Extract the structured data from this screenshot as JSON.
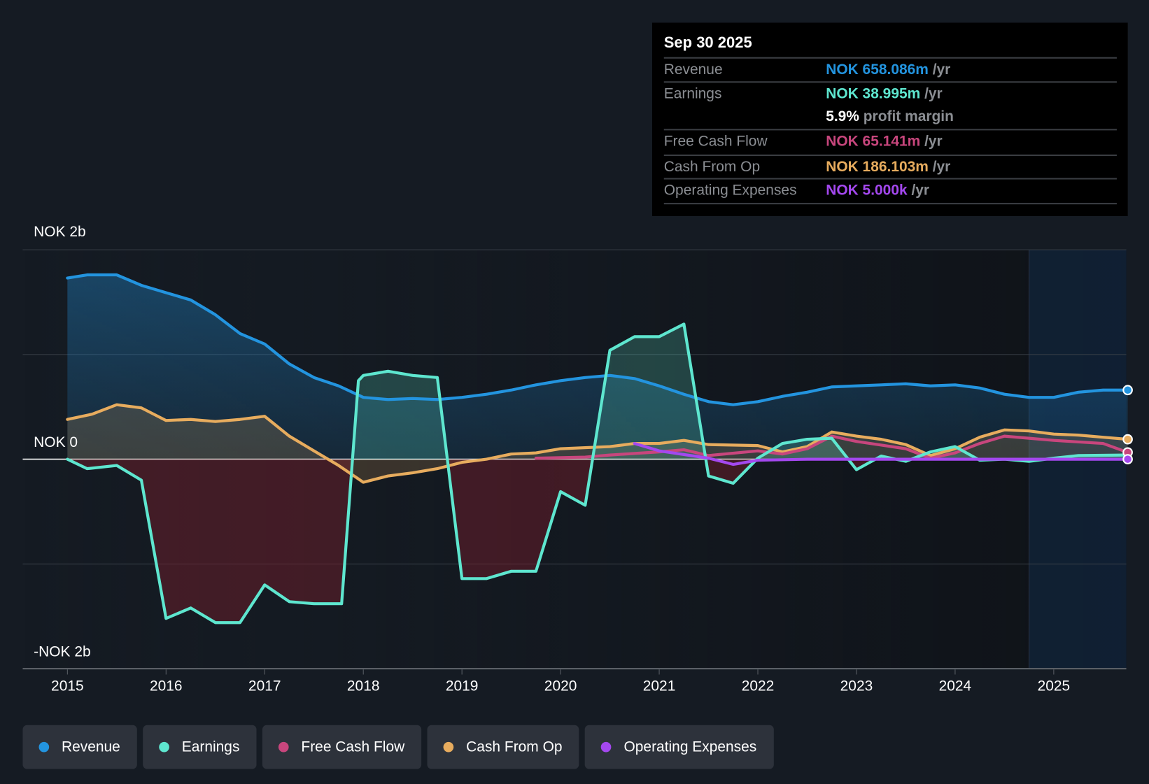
{
  "tooltip": {
    "date": "Sep 30 2025",
    "rows": [
      {
        "label": "Revenue",
        "value": "NOK 658.086m",
        "unit": "/yr",
        "color": "#2394df"
      },
      {
        "label": "Earnings",
        "value": "NOK 38.995m",
        "unit": "/yr",
        "color": "#5ee6cf"
      },
      {
        "label": "",
        "value": "5.9%",
        "unit": "profit margin",
        "color": "#ffffff"
      },
      {
        "label": "Free Cash Flow",
        "value": "NOK 65.141m",
        "unit": "/yr",
        "color": "#c8467d"
      },
      {
        "label": "Cash From Op",
        "value": "NOK 186.103m",
        "unit": "/yr",
        "color": "#e7ac5e"
      },
      {
        "label": "Operating Expenses",
        "value": "NOK 5.000k",
        "unit": "/yr",
        "color": "#a448ef"
      }
    ]
  },
  "chart_data": {
    "type": "line",
    "title": "",
    "xlabel": "",
    "ylabel": "",
    "ylim": [
      -2,
      2
    ],
    "xlim": [
      2014.55,
      2025.75
    ],
    "y_unit": "NOK billions",
    "y_tick_labels": [
      {
        "value": 2,
        "label": "NOK 2b"
      },
      {
        "value": 0,
        "label": "NOK 0"
      },
      {
        "value": -2,
        "label": "-NOK 2b"
      }
    ],
    "gridlines": [
      2,
      1,
      0,
      -1,
      -2
    ],
    "x_ticks": [
      2015,
      2016,
      2017,
      2018,
      2019,
      2020,
      2021,
      2022,
      2023,
      2024,
      2025
    ],
    "x_tick_labels": [
      "2015",
      "2016",
      "2017",
      "2018",
      "2019",
      "2020",
      "2021",
      "2022",
      "2023",
      "2024",
      "2025"
    ],
    "forecast_start": 2024.75,
    "legend_position": "bottom-left",
    "series": [
      {
        "name": "Revenue",
        "color": "#2394df",
        "fill": true,
        "x": [
          2015,
          2015.2,
          2015.5,
          2015.75,
          2016,
          2016.25,
          2016.5,
          2016.75,
          2017,
          2017.25,
          2017.5,
          2017.75,
          2018,
          2018.25,
          2018.5,
          2018.75,
          2019,
          2019.25,
          2019.5,
          2019.75,
          2020,
          2020.25,
          2020.5,
          2020.75,
          2021,
          2021.25,
          2021.5,
          2021.75,
          2022,
          2022.25,
          2022.5,
          2022.75,
          2023,
          2023.25,
          2023.5,
          2023.75,
          2024,
          2024.25,
          2024.5,
          2024.75,
          2025,
          2025.25,
          2025.5,
          2025.75
        ],
        "y": [
          1.73,
          1.76,
          1.76,
          1.66,
          1.59,
          1.52,
          1.38,
          1.2,
          1.1,
          0.91,
          0.78,
          0.7,
          0.59,
          0.57,
          0.58,
          0.57,
          0.59,
          0.62,
          0.66,
          0.71,
          0.75,
          0.78,
          0.8,
          0.77,
          0.7,
          0.62,
          0.55,
          0.52,
          0.55,
          0.6,
          0.64,
          0.69,
          0.7,
          0.71,
          0.72,
          0.7,
          0.71,
          0.68,
          0.62,
          0.59,
          0.59,
          0.64,
          0.66,
          0.66
        ]
      },
      {
        "name": "Earnings",
        "color": "#5ee6cf",
        "fill": true,
        "x": [
          2015,
          2015.2,
          2015.5,
          2015.75,
          2016,
          2016.25,
          2016.5,
          2016.75,
          2017,
          2017.25,
          2017.5,
          2017.78,
          2017.95,
          2018,
          2018.25,
          2018.5,
          2018.75,
          2019,
          2019.25,
          2019.5,
          2019.75,
          2020,
          2020.25,
          2020.5,
          2020.75,
          2021,
          2021.25,
          2021.5,
          2021.75,
          2022,
          2022.25,
          2022.5,
          2022.75,
          2023,
          2023.25,
          2023.5,
          2023.75,
          2024,
          2024.25,
          2024.5,
          2024.75,
          2025,
          2025.25,
          2025.75
        ],
        "y": [
          0,
          -0.09,
          -0.06,
          -0.2,
          -1.52,
          -1.42,
          -1.56,
          -1.56,
          -1.2,
          -1.36,
          -1.38,
          -1.38,
          0.75,
          0.8,
          0.84,
          0.8,
          0.78,
          -1.14,
          -1.14,
          -1.07,
          -1.07,
          -0.31,
          -0.44,
          1.04,
          1.17,
          1.17,
          1.29,
          -0.16,
          -0.23,
          0.01,
          0.15,
          0.19,
          0.2,
          -0.1,
          0.03,
          -0.02,
          0.07,
          0.12,
          -0.01,
          0,
          -0.02,
          0.01,
          0.035,
          0.04
        ]
      },
      {
        "name": "Free Cash Flow",
        "color": "#c8467d",
        "fill": false,
        "x": [
          2019.75,
          2020.25,
          2020.5,
          2021,
          2021.25,
          2021.5,
          2022,
          2022.25,
          2022.5,
          2022.75,
          2023,
          2023.5,
          2023.75,
          2024,
          2024.25,
          2024.5,
          2024.75,
          2025,
          2025.5,
          2025.75
        ],
        "y": [
          0.01,
          0.02,
          0.04,
          0.07,
          0.09,
          0.035,
          0.08,
          0.05,
          0.1,
          0.22,
          0.17,
          0.1,
          0.01,
          0.06,
          0.15,
          0.22,
          0.2,
          0.18,
          0.15,
          0.065
        ]
      },
      {
        "name": "Cash From Op",
        "color": "#e7ac5e",
        "fill": true,
        "x": [
          2015,
          2015.25,
          2015.5,
          2015.75,
          2016,
          2016.25,
          2016.5,
          2016.75,
          2017,
          2017.25,
          2017.5,
          2017.75,
          2018,
          2018.25,
          2018.5,
          2018.75,
          2019,
          2019.25,
          2019.5,
          2019.75,
          2020,
          2020.5,
          2020.75,
          2021,
          2021.25,
          2021.5,
          2022,
          2022.25,
          2022.5,
          2022.75,
          2023,
          2023.25,
          2023.5,
          2023.75,
          2024,
          2024.25,
          2024.5,
          2024.75,
          2025,
          2025.25,
          2025.5,
          2025.75
        ],
        "y": [
          0.38,
          0.43,
          0.52,
          0.49,
          0.37,
          0.38,
          0.36,
          0.38,
          0.41,
          0.22,
          0.08,
          -0.06,
          -0.22,
          -0.16,
          -0.13,
          -0.09,
          -0.03,
          0,
          0.05,
          0.06,
          0.1,
          0.12,
          0.15,
          0.15,
          0.18,
          0.14,
          0.13,
          0.07,
          0.12,
          0.26,
          0.22,
          0.19,
          0.14,
          0.035,
          0.1,
          0.21,
          0.28,
          0.27,
          0.24,
          0.23,
          0.21,
          0.19
        ]
      },
      {
        "name": "Operating Expenses",
        "color": "#a448ef",
        "fill": false,
        "x": [
          2020.75,
          2021,
          2021.5,
          2021.75,
          2022,
          2022.5,
          2023,
          2024,
          2025,
          2025.75
        ],
        "y": [
          0.15,
          0.08,
          0.01,
          -0.05,
          -0.01,
          0,
          0,
          0,
          0,
          0
        ]
      }
    ]
  },
  "legend": [
    {
      "label": "Revenue",
      "color": "#2394df"
    },
    {
      "label": "Earnings",
      "color": "#5ee6cf"
    },
    {
      "label": "Free Cash Flow",
      "color": "#c8467d"
    },
    {
      "label": "Cash From Op",
      "color": "#e7ac5e"
    },
    {
      "label": "Operating Expenses",
      "color": "#a448ef"
    }
  ]
}
